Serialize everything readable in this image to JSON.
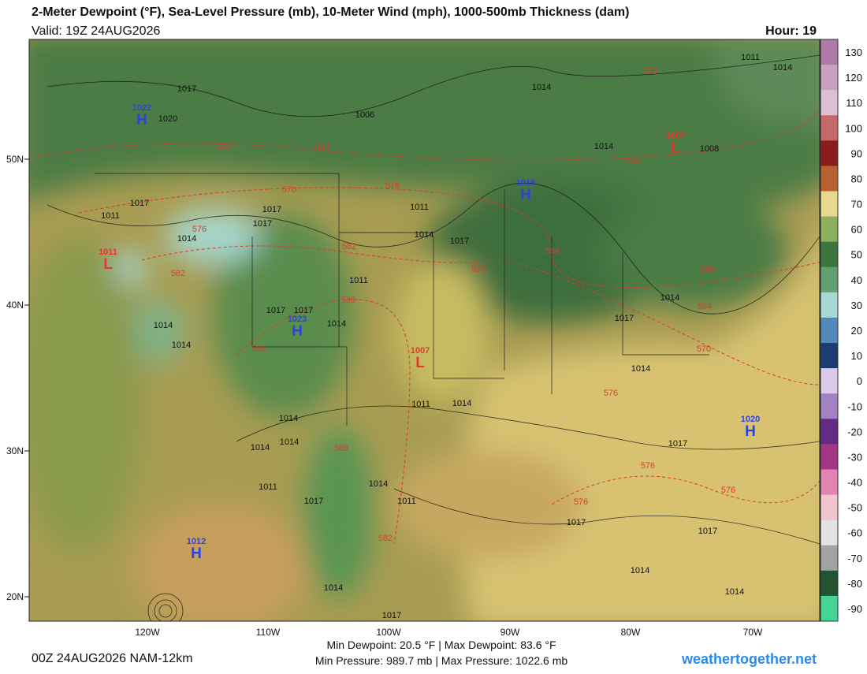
{
  "header": {
    "title": "2-Meter Dewpoint (°F), Sea-Level Pressure (mb), 10-Meter Wind (mph), 1000-500mb Thickness (dam)",
    "valid": "Valid: 19Z 24AUG2026",
    "hour": "Hour: 19"
  },
  "map": {
    "lon_labels": [
      "120W",
      "110W",
      "100W",
      "90W",
      "80W",
      "70W"
    ],
    "lat_labels": [
      "50N",
      "40N",
      "30N",
      "20N"
    ],
    "centers": [
      {
        "letter": "H",
        "pressure": 1022,
        "color": "#2a44e0"
      },
      {
        "letter": "H",
        "pressure": 1019,
        "color": "#2a44e0"
      },
      {
        "letter": "L",
        "pressure": 1007,
        "color": "#e03a30"
      },
      {
        "letter": "L",
        "pressure": 1011,
        "color": "#e03a30"
      },
      {
        "letter": "H",
        "pressure": 1023,
        "color": "#2a44e0"
      },
      {
        "letter": "L",
        "pressure": 1007,
        "color": "#e03a30"
      },
      {
        "letter": "H",
        "pressure": 1020,
        "color": "#2a44e0"
      },
      {
        "letter": "H",
        "pressure": 1012,
        "color": "#2a44e0"
      }
    ],
    "isobar_labels": [
      1017,
      1020,
      1006,
      1014,
      1011,
      1014,
      1014,
      1008,
      1017,
      1011,
      1017,
      1017,
      1014,
      1011,
      1014,
      1017,
      1011,
      1017,
      1017,
      1014,
      1014,
      1014,
      1014,
      1017,
      1014,
      1011,
      1014,
      1014,
      1014,
      1014,
      1017,
      1011,
      1014,
      1017,
      1011,
      1017,
      1017,
      1014,
      1014,
      1014,
      1017
    ],
    "thickness_labels": [
      558,
      564,
      564,
      558,
      570,
      576,
      576,
      582,
      582,
      564,
      570,
      558,
      588,
      564,
      588,
      570,
      576,
      588,
      582,
      576,
      576,
      576
    ]
  },
  "colorbar": {
    "ticks": [
      130,
      120,
      110,
      100,
      90,
      80,
      70,
      60,
      50,
      40,
      30,
      20,
      10,
      0,
      -10,
      -20,
      -30,
      -40,
      -50,
      -60,
      -70,
      -80,
      -90
    ],
    "colors": [
      "#b07aa8",
      "#caa0c0",
      "#dcc0d6",
      "#c46868",
      "#8c1c1c",
      "#b86232",
      "#e6d88e",
      "#8cb05e",
      "#3c763c",
      "#62a074",
      "#a8d8d4",
      "#5288ba",
      "#1c3c72",
      "#dccaea",
      "#a282c2",
      "#642a84",
      "#a43484",
      "#e284b2",
      "#f2c4cc",
      "#e2e2e2",
      "#a2a2a2",
      "#225432",
      "#44d494"
    ]
  },
  "footer": {
    "run": "00Z 24AUG2026 NAM-12km",
    "stats_1": "Min Dewpoint:  20.5 °F | Max Dewpoint:  83.6 °F",
    "stats_2": "Min Pressure: 989.7 mb | Max Pressure: 1022.6 mb",
    "site": "weathertogether.net"
  }
}
